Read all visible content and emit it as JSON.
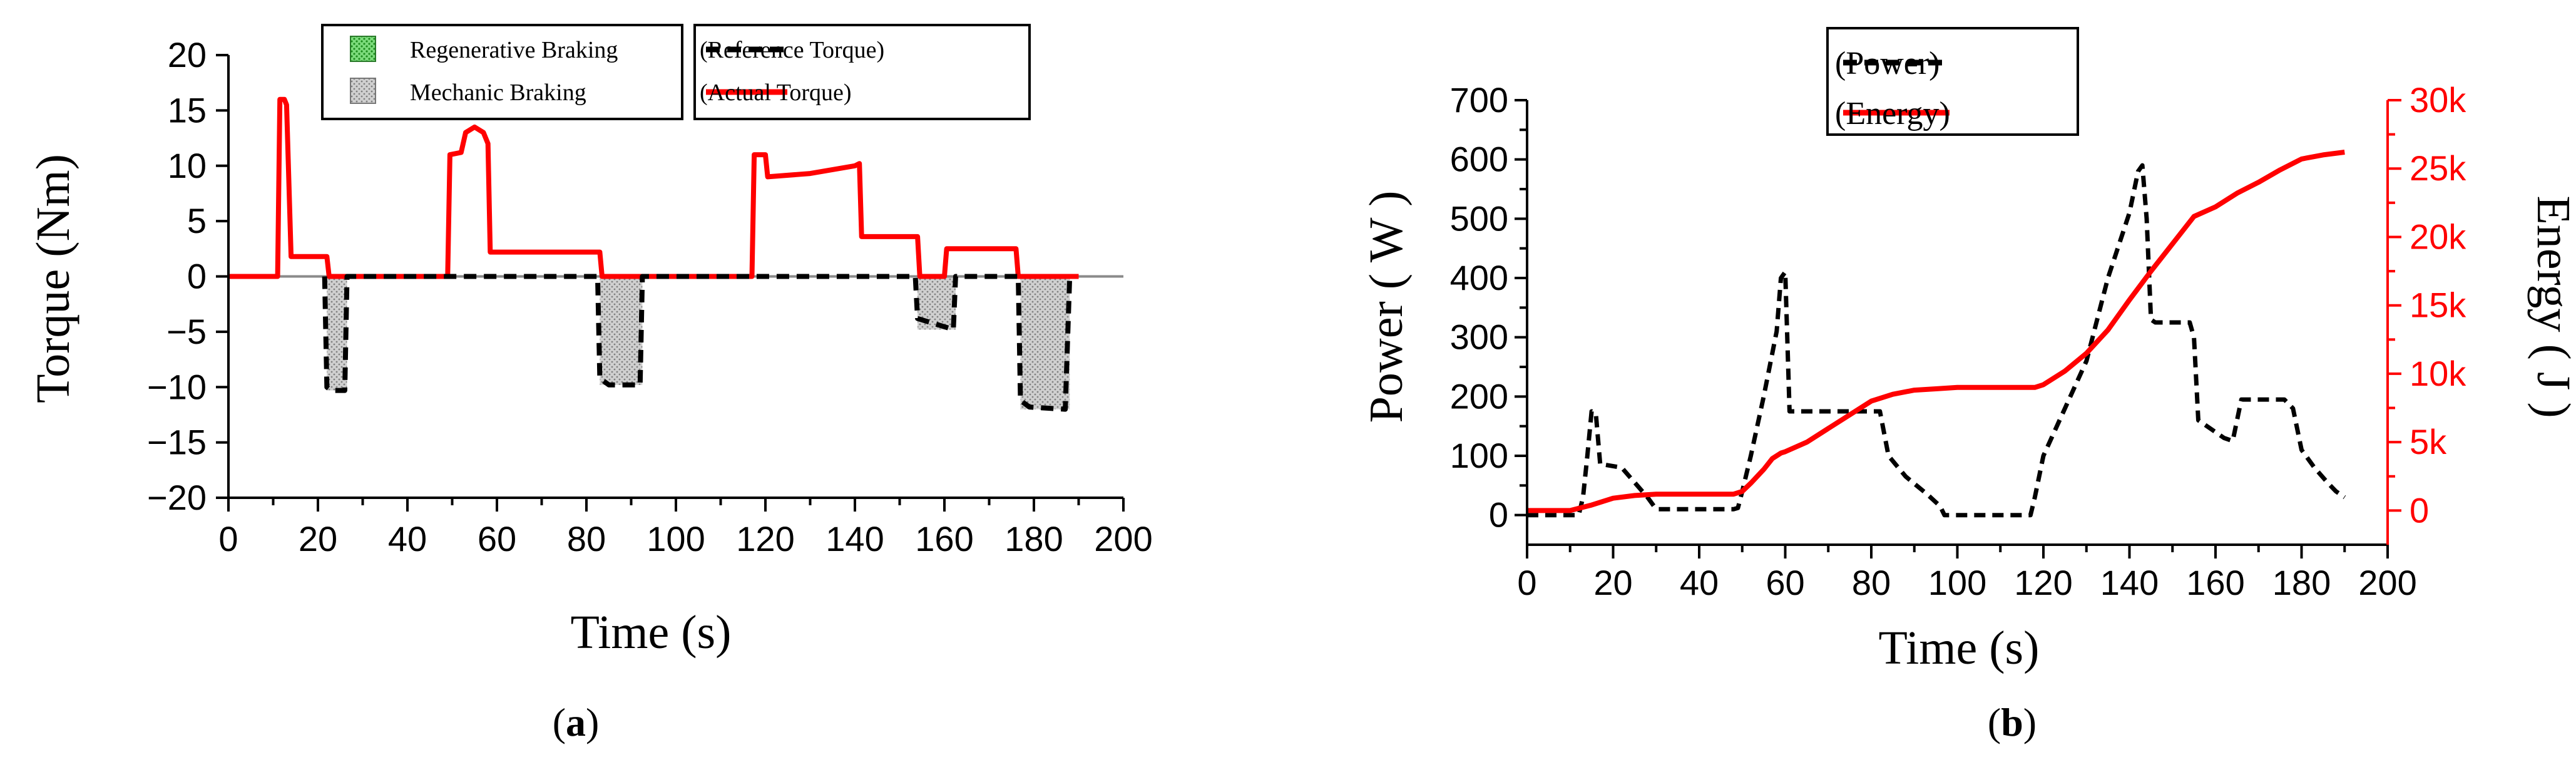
{
  "panel_a": {
    "caption_open": "(",
    "caption_letter": "a",
    "caption_close": ")",
    "legend": {
      "regen": "Regenerative Braking",
      "mech": "Mechanic Braking",
      "ref": "(Reference Torque)",
      "actual": "(Actual Torque)"
    },
    "colors": {
      "actual": "#ff0000",
      "reference": "#000000",
      "mech_fill": "#c8c8c8",
      "regen_fill": "#3cb44b"
    }
  },
  "panel_b": {
    "caption_open": "(",
    "caption_letter": "b",
    "caption_close": ")",
    "legend": {
      "power": "(Power)",
      "energy": "(Energy)"
    },
    "colors": {
      "power": "#000000",
      "energy": "#ff0000"
    }
  },
  "chart_data": [
    {
      "type": "line",
      "title": "",
      "xlabel": "Time (s)",
      "ylabel": "Torque (Nm)",
      "xlim": [
        0,
        200
      ],
      "ylim": [
        -20,
        20
      ],
      "xticks": [
        "0",
        "20",
        "40",
        "60",
        "80",
        "100",
        "120",
        "140",
        "160",
        "180",
        "200"
      ],
      "yticks": [
        "20",
        "15",
        "10",
        "5",
        "0",
        "−5",
        "−10",
        "−15",
        "−20"
      ],
      "series": [
        {
          "name": "Actual Torque",
          "style": "solid",
          "x": [
            0,
            11,
            11.5,
            12.5,
            13,
            14,
            22,
            22.5,
            49,
            49.5,
            52,
            53,
            55,
            57,
            58,
            58.5,
            83,
            83.5,
            117,
            117.5,
            120,
            120.5,
            130,
            140,
            141,
            141.5,
            154,
            154.5,
            160,
            160.5,
            176,
            176.5,
            190
          ],
          "y": [
            0,
            0,
            16,
            16,
            15.5,
            1.8,
            1.8,
            0,
            0,
            11,
            11.2,
            13,
            13.5,
            13,
            12,
            2.2,
            2.2,
            0,
            0,
            11,
            11,
            9,
            9.3,
            10,
            10.2,
            3.6,
            3.6,
            0,
            0,
            2.5,
            2.5,
            0,
            0
          ]
        },
        {
          "name": "Reference Torque",
          "style": "dashed",
          "x": [
            21.5,
            22,
            23,
            26,
            26.5,
            82.5,
            83,
            85,
            92,
            92.5,
            153.5,
            154,
            162,
            162.5,
            176.5,
            177,
            179,
            187,
            188
          ],
          "y": [
            0,
            -10,
            -10.3,
            -10.3,
            0,
            0,
            -9.2,
            -9.8,
            -9.8,
            0,
            0,
            -3.8,
            -4.8,
            0,
            0,
            -11.2,
            -11.8,
            -12,
            0
          ]
        }
      ],
      "shaded_regions": [
        {
          "name": "Mechanic Braking",
          "x": [
            22,
            26.5
          ],
          "ymin": -10.3
        },
        {
          "name": "Mechanic Braking",
          "x": [
            83,
            92.5
          ],
          "ymin": -9.8
        },
        {
          "name": "Mechanic Braking",
          "x": [
            154,
            162.5
          ],
          "ymin": -4.8
        },
        {
          "name": "Mechanic Braking",
          "x": [
            177,
            188
          ],
          "ymin": -12
        }
      ],
      "legend": [
        "Regenerative Braking",
        "Mechanic Braking",
        "Reference Torque",
        "Actual Torque"
      ]
    },
    {
      "type": "line",
      "title": "",
      "xlabel": "Time (s)",
      "ylabel": "Power ( W )",
      "y2label": "Energy ( J )",
      "xlim": [
        0,
        200
      ],
      "ylim": [
        -50,
        700
      ],
      "y2lim": [
        -2500,
        30000
      ],
      "xticks": [
        "0",
        "20",
        "40",
        "60",
        "80",
        "100",
        "120",
        "140",
        "160",
        "180",
        "200"
      ],
      "yticks": [
        "700",
        "600",
        "500",
        "400",
        "300",
        "200",
        "100",
        "0"
      ],
      "y2ticks": [
        "30k",
        "25k",
        "20k",
        "15k",
        "10k",
        "5k",
        "0"
      ],
      "series": [
        {
          "name": "Power",
          "axis": "left",
          "style": "dashed",
          "x": [
            0,
            12,
            13,
            14,
            15,
            16,
            17,
            18,
            22,
            25,
            28,
            30,
            48,
            49,
            50,
            52,
            55,
            58,
            59,
            60,
            61,
            82,
            84,
            88,
            93,
            96,
            97,
            117,
            118,
            120,
            125,
            130,
            135,
            140,
            142,
            143,
            144,
            145,
            146,
            152,
            154,
            155,
            156,
            160,
            162,
            164,
            165,
            166,
            176,
            178,
            180,
            183,
            186,
            188,
            190
          ],
          "y": [
            0,
            0,
            30,
            100,
            175,
            170,
            85,
            85,
            80,
            55,
            30,
            10,
            10,
            12,
            40,
            100,
            200,
            310,
            400,
            410,
            175,
            175,
            100,
            65,
            35,
            15,
            0,
            0,
            30,
            100,
            180,
            260,
            400,
            510,
            580,
            590,
            500,
            330,
            325,
            325,
            325,
            300,
            160,
            140,
            130,
            125,
            160,
            195,
            195,
            180,
            110,
            80,
            55,
            40,
            30
          ]
        },
        {
          "name": "Energy",
          "axis": "right",
          "style": "solid",
          "x": [
            0,
            5,
            10,
            15,
            20,
            25,
            30,
            40,
            48,
            50,
            52,
            55,
            57,
            59,
            60,
            65,
            70,
            75,
            80,
            85,
            90,
            95,
            100,
            110,
            118,
            120,
            125,
            130,
            135,
            140,
            145,
            150,
            155,
            160,
            165,
            170,
            175,
            180,
            185,
            190
          ],
          "y": [
            0,
            0,
            0,
            400,
            900,
            1100,
            1200,
            1200,
            1200,
            1400,
            2000,
            3000,
            3800,
            4200,
            4300,
            5000,
            6000,
            7000,
            8000,
            8500,
            8800,
            8900,
            9000,
            9000,
            9000,
            9200,
            10200,
            11500,
            13200,
            15400,
            17500,
            19500,
            21500,
            22200,
            23200,
            24000,
            24900,
            25700,
            26000,
            26200
          ]
        }
      ],
      "legend": [
        "Power",
        "Energy"
      ]
    }
  ]
}
